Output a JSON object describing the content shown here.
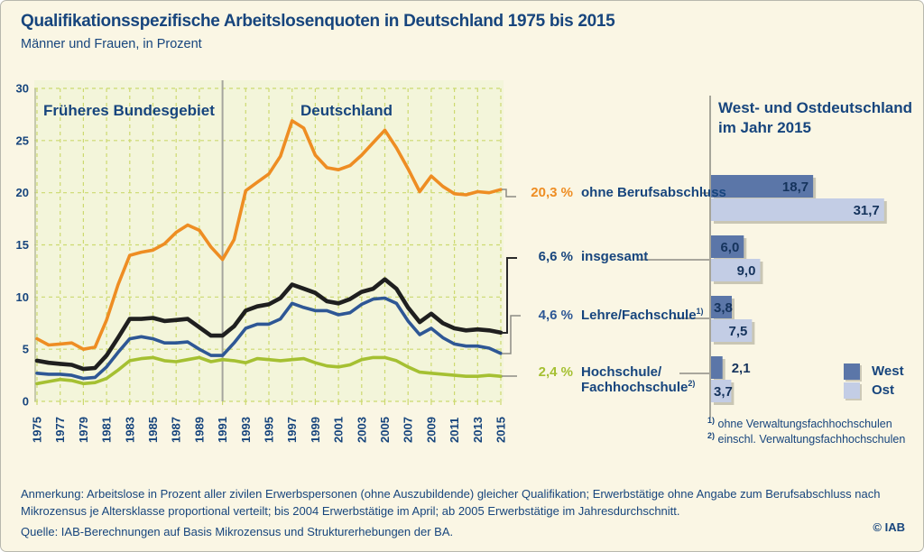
{
  "colors": {
    "background": "#faf6e4",
    "plot_background": "#f3f5da",
    "grid": "#ccd96f",
    "axis": "#b4b89b",
    "divider": "#a5a59d",
    "connector": "#8c8c84",
    "title_text": "#17457d",
    "bar_value_text": "#15335c",
    "orange": "#ee8d23",
    "black": "#1f1f1f",
    "blue": "#2e5795",
    "green": "#a5c032",
    "bar_west": "#5b76a8",
    "bar_ost": "#c3cde5"
  },
  "header": {
    "title": "Qualifikationsspezifische Arbeitslosenquoten in Deutschland 1975 bis 2015",
    "subtitle": "Männer und Frauen, in Prozent"
  },
  "chart_data": [
    {
      "type": "line",
      "region_labels": [
        "Früheres Bundesgebiet",
        "Deutschland"
      ],
      "region_divider_year": 1991,
      "grid": "dashed",
      "ylim": [
        0,
        30
      ],
      "yticks": [
        0,
        5,
        10,
        15,
        20,
        25,
        30
      ],
      "xticks": [
        1975,
        1977,
        1979,
        1981,
        1983,
        1985,
        1987,
        1989,
        1991,
        1993,
        1995,
        1997,
        1999,
        2001,
        2003,
        2005,
        2007,
        2009,
        2011,
        2013,
        2015
      ],
      "x": [
        1975,
        1976,
        1977,
        1978,
        1979,
        1980,
        1981,
        1982,
        1983,
        1984,
        1985,
        1986,
        1987,
        1988,
        1989,
        1990,
        1991,
        1992,
        1993,
        1994,
        1995,
        1996,
        1997,
        1998,
        1999,
        2000,
        2001,
        2002,
        2003,
        2004,
        2005,
        2006,
        2007,
        2008,
        2009,
        2010,
        2011,
        2012,
        2013,
        2014,
        2015
      ],
      "series": [
        {
          "name": "ohne Berufsabschluss",
          "color": "#ee8d23",
          "end_label": "20,3 %",
          "values": [
            6.0,
            5.4,
            5.5,
            5.6,
            5.0,
            5.2,
            7.8,
            11.2,
            14.0,
            14.3,
            14.5,
            15.1,
            16.2,
            16.9,
            16.4,
            14.8,
            13.6,
            15.5,
            20.2,
            21.0,
            21.8,
            23.5,
            26.9,
            26.2,
            23.6,
            22.4,
            22.2,
            22.6,
            23.6,
            24.8,
            26.0,
            24.3,
            22.3,
            20.1,
            21.6,
            20.6,
            19.9,
            19.8,
            20.1,
            20.0,
            20.3
          ]
        },
        {
          "name": "insgesamt",
          "color": "#1f1f1f",
          "end_label": "6,6 %",
          "values": [
            3.9,
            3.7,
            3.6,
            3.5,
            3.1,
            3.2,
            4.4,
            6.1,
            7.9,
            7.9,
            8.0,
            7.7,
            7.8,
            7.9,
            7.1,
            6.3,
            6.3,
            7.2,
            8.7,
            9.1,
            9.3,
            9.9,
            11.2,
            10.8,
            10.4,
            9.6,
            9.4,
            9.8,
            10.5,
            10.8,
            11.7,
            10.8,
            9.0,
            7.6,
            8.4,
            7.5,
            7.0,
            6.8,
            6.9,
            6.8,
            6.6
          ]
        },
        {
          "name": "Lehre/Fachschule",
          "color": "#2e5795",
          "end_label": "4,6 %",
          "values": [
            2.7,
            2.6,
            2.6,
            2.5,
            2.2,
            2.3,
            3.3,
            4.7,
            6.0,
            6.2,
            6.0,
            5.6,
            5.6,
            5.7,
            5.0,
            4.4,
            4.4,
            5.6,
            7.0,
            7.4,
            7.4,
            7.9,
            9.4,
            9.0,
            8.7,
            8.7,
            8.3,
            8.5,
            9.3,
            9.8,
            9.9,
            9.4,
            7.7,
            6.4,
            7.0,
            6.1,
            5.5,
            5.3,
            5.3,
            5.1,
            4.6
          ]
        },
        {
          "name": "Hochschule/Fachhochschule",
          "color": "#a5c032",
          "end_label": "2,4 %",
          "values": [
            1.7,
            1.9,
            2.1,
            2.0,
            1.7,
            1.8,
            2.2,
            3.0,
            3.9,
            4.1,
            4.2,
            3.9,
            3.8,
            4.0,
            4.2,
            3.8,
            4.0,
            3.9,
            3.7,
            4.1,
            4.0,
            3.9,
            4.0,
            4.1,
            3.7,
            3.4,
            3.3,
            3.5,
            4.0,
            4.2,
            4.2,
            3.9,
            3.3,
            2.8,
            2.7,
            2.6,
            2.5,
            2.4,
            2.4,
            2.5,
            2.4
          ]
        }
      ]
    },
    {
      "type": "bar",
      "title_line1": "West- und Ostdeutschland",
      "title_line2": "im Jahr 2015",
      "categories": [
        "ohne Berufsabschluss",
        "insgesamt",
        "Lehre/Fachschule",
        "Hochschule/Fachhochschule"
      ],
      "xlim": [
        0,
        33
      ],
      "legend_position": "bottom-right",
      "series": [
        {
          "name": "West",
          "color": "#5b76a8",
          "values": [
            18.7,
            6.0,
            3.8,
            2.1
          ],
          "labels": [
            "18,7",
            "6,0",
            "3,8",
            "2,1"
          ]
        },
        {
          "name": "Ost",
          "color": "#c3cde5",
          "values": [
            31.7,
            9.0,
            7.5,
            3.7
          ],
          "labels": [
            "31,7",
            "9,0",
            "7,5",
            "3,7"
          ]
        }
      ]
    }
  ],
  "category_labels": [
    {
      "value": "20,3 %",
      "color": "#ee8d23",
      "label": "ohne Berufsabschluss",
      "sup": ""
    },
    {
      "value": "6,6 %",
      "color": "#17457d",
      "label": "insgesamt",
      "sup": ""
    },
    {
      "value": "4,6 %",
      "color": "#2e5795",
      "label": "Lehre/Fachschule",
      "sup": "1)"
    },
    {
      "value": "2,4 %",
      "color": "#a5c032",
      "label": "Hochschule/",
      "label2": "Fachhochschule",
      "sup2": "2)"
    }
  ],
  "footnotes": [
    {
      "marker": "1)",
      "text": "ohne Verwaltungsfachhochschulen"
    },
    {
      "marker": "2)",
      "text": "einschl. Verwaltungsfachhochschulen"
    }
  ],
  "annotation": "Anmerkung: Arbeitslose in Prozent aller zivilen Erwerbspersonen (ohne Auszubildende) gleicher Qualifikation; Erwerbstätige ohne Angabe zum Berufsabschluss nach Mikrozensus je Altersklasse proportional verteilt; bis 2004 Erwerbstätige im April; ab 2005 Erwerbstätige im Jahresdurchschnitt.",
  "source": "Quelle: IAB-Berechnungen auf Basis Mikrozensus und Strukturerhebungen der BA.",
  "copyright": "© IAB"
}
